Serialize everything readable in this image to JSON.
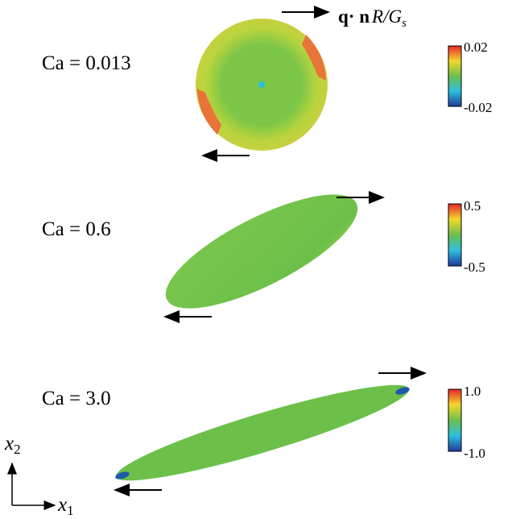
{
  "header": {
    "q": "q·",
    "n": "n",
    "ratio": "R/G",
    "sub": "s"
  },
  "panels": [
    {
      "label": "Ca = 0.013",
      "colorbar": {
        "max": "0.02",
        "min": "-0.02"
      }
    },
    {
      "label": "Ca = 0.6",
      "colorbar": {
        "max": "0.5",
        "min": "-0.5"
      }
    },
    {
      "label": "Ca = 3.0",
      "colorbar": {
        "max": "1.0",
        "min": "-1.0"
      }
    }
  ],
  "axes": {
    "x2": {
      "symbol": "x",
      "index": "2"
    },
    "x1": {
      "symbol": "x",
      "index": "1"
    }
  }
}
